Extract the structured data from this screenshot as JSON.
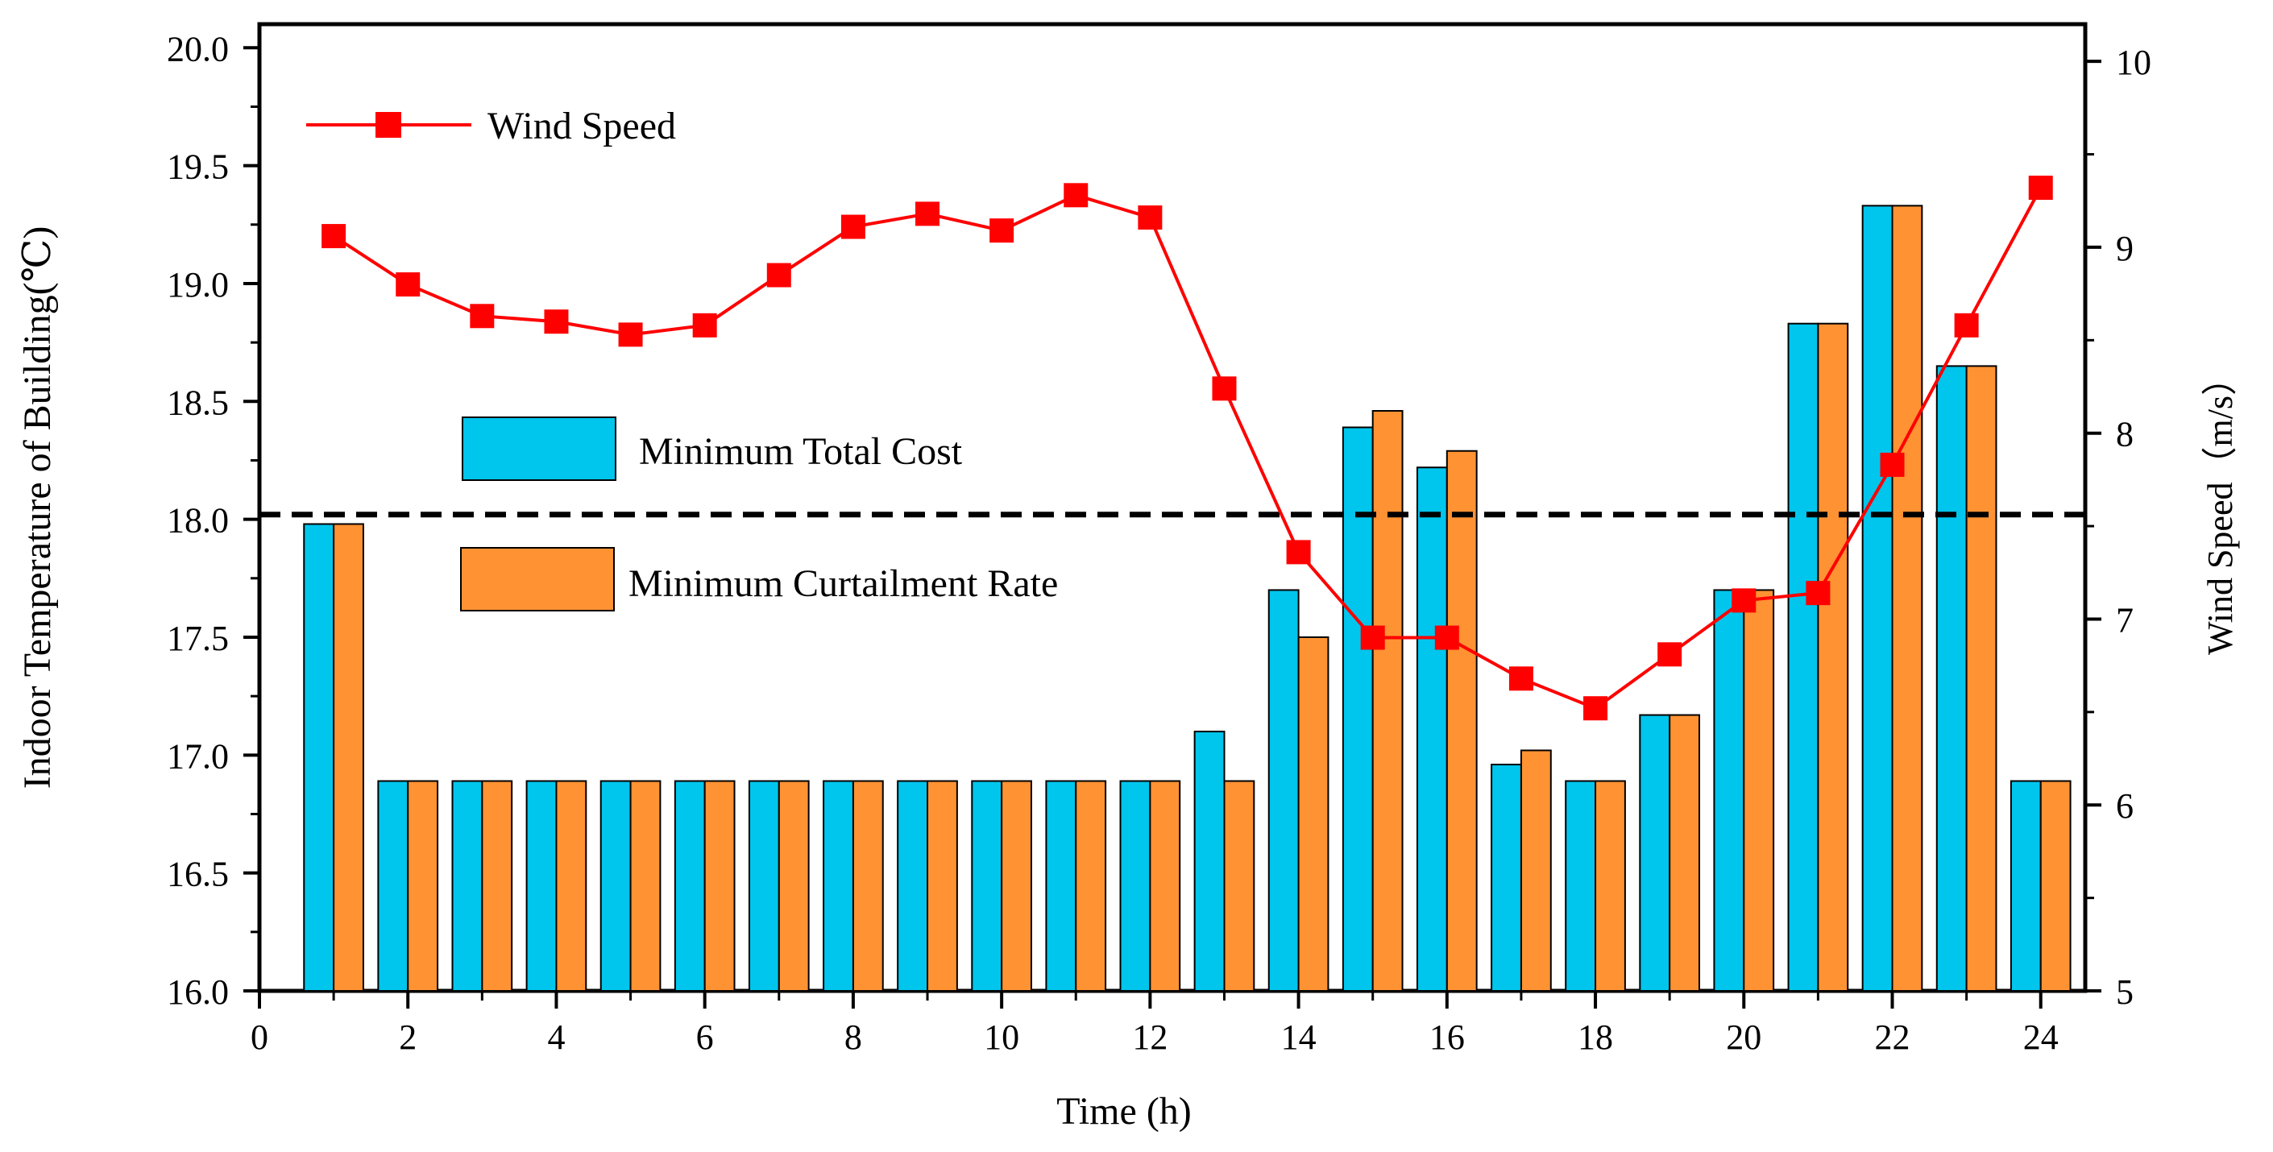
{
  "chart_data": {
    "type": "bar",
    "x": [
      1,
      2,
      3,
      4,
      5,
      6,
      7,
      8,
      9,
      10,
      11,
      12,
      13,
      14,
      15,
      16,
      17,
      18,
      19,
      20,
      21,
      22,
      23,
      24
    ],
    "series": [
      {
        "name": "Minimum Total Cost",
        "axis": "left",
        "color": "#00C5EC",
        "values": [
          17.98,
          16.89,
          16.89,
          16.89,
          16.89,
          16.89,
          16.89,
          16.89,
          16.89,
          16.89,
          16.89,
          16.89,
          17.1,
          17.7,
          18.39,
          18.22,
          16.96,
          16.89,
          17.17,
          17.7,
          18.83,
          19.33,
          18.65,
          16.89
        ]
      },
      {
        "name": "Minimum Curtailment Rate",
        "axis": "left",
        "color": "#FF9233",
        "values": [
          17.98,
          16.89,
          16.89,
          16.89,
          16.89,
          16.89,
          16.89,
          16.89,
          16.89,
          16.89,
          16.89,
          16.89,
          16.89,
          17.5,
          18.46,
          18.29,
          17.02,
          16.89,
          17.17,
          17.7,
          18.83,
          19.33,
          18.65,
          16.89
        ]
      },
      {
        "name": "Wind Speed",
        "type": "line",
        "axis": "right",
        "color": "#FF0000",
        "values": [
          9.06,
          8.8,
          8.63,
          8.6,
          8.53,
          8.58,
          8.85,
          9.11,
          9.18,
          9.09,
          9.28,
          9.16,
          8.24,
          7.36,
          6.9,
          6.9,
          6.68,
          6.52,
          6.81,
          7.1,
          7.14,
          7.83,
          8.58,
          9.32
        ]
      }
    ],
    "reference_line": {
      "value": 18.02,
      "axis": "left",
      "style": "dashed"
    },
    "xlabel": "Time (h)",
    "ylabel": "Indoor Temperature of Building(℃)",
    "y2label": "Wind Speed（m/s）",
    "xlim": [
      0,
      24.6
    ],
    "ylim": [
      16.0,
      20.1
    ],
    "y2lim": [
      5,
      10.2
    ],
    "xticks": [
      0,
      2,
      4,
      6,
      8,
      10,
      12,
      14,
      16,
      18,
      20,
      22,
      24
    ],
    "yticks": [
      "16.0",
      "16.5",
      "17.0",
      "17.5",
      "18.0",
      "18.5",
      "19.0",
      "19.5",
      "20.0"
    ],
    "y2ticks": [
      5,
      6,
      7,
      8,
      9,
      10
    ],
    "legend": {
      "position": "top-left",
      "labels": [
        "Wind Speed",
        "Minimum Total Cost",
        "Minimum Curtailment Rate"
      ]
    }
  }
}
